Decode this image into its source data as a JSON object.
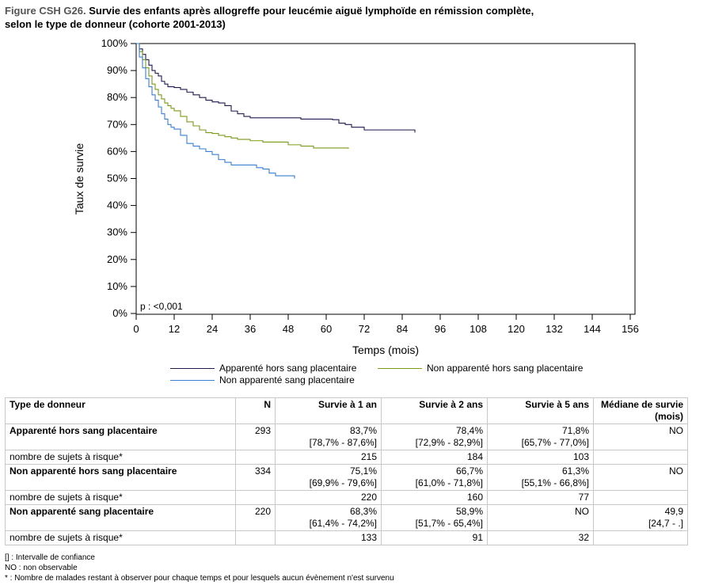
{
  "title": {
    "prefix": "Figure CSH G26.",
    "line1": "Survie des enfants après allogreffe pour leucémie aiguë lymphoïde en rémission complète,",
    "line2": "selon le type de donneur (cohorte 2001-2013)"
  },
  "chart_data": {
    "type": "line",
    "xlabel": "Temps (mois)",
    "ylabel": "Taux de survie",
    "xlim": [
      0,
      156
    ],
    "ylim": [
      0,
      100
    ],
    "x_ticks": [
      0,
      12,
      24,
      36,
      48,
      60,
      72,
      84,
      96,
      108,
      120,
      132,
      144,
      156
    ],
    "y_ticks": [
      "0%",
      "10%",
      "20%",
      "30%",
      "40%",
      "50%",
      "60%",
      "70%",
      "80%",
      "90%",
      "100%"
    ],
    "annotation": "p : <0,001",
    "grid": false,
    "legend_position": "bottom",
    "series": [
      {
        "name": "Apparenté hors sang placentaire",
        "color": "#1f1b4d",
        "x": [
          0,
          1,
          2,
          3,
          4,
          5,
          6,
          7,
          8,
          9,
          10,
          11,
          12,
          14,
          16,
          18,
          20,
          22,
          24,
          26,
          28,
          30,
          32,
          34,
          36,
          40,
          44,
          48,
          52,
          56,
          60,
          62,
          64,
          66,
          68,
          70,
          72,
          76,
          80,
          84,
          88
        ],
        "y": [
          100,
          98,
          96,
          94,
          92,
          90,
          89,
          88,
          86,
          85,
          84,
          84,
          83.7,
          83,
          82,
          81,
          80,
          79,
          78.4,
          78,
          77,
          75,
          74,
          73,
          72.5,
          72.5,
          72.5,
          72.5,
          72,
          72,
          72,
          71.8,
          70.5,
          70,
          69,
          69,
          68,
          68,
          68,
          68,
          67
        ]
      },
      {
        "name": "Non apparenté hors sang placentaire",
        "color": "#7a9a1a",
        "x": [
          0,
          1,
          2,
          3,
          4,
          5,
          6,
          7,
          8,
          9,
          10,
          11,
          12,
          14,
          16,
          18,
          20,
          22,
          24,
          26,
          28,
          30,
          32,
          36,
          40,
          44,
          48,
          52,
          56,
          60,
          64,
          67
        ],
        "y": [
          100,
          97,
          94,
          91,
          88,
          85,
          83,
          81,
          79.5,
          78,
          77,
          76,
          75.1,
          73,
          71,
          69.5,
          68,
          67,
          66.7,
          66,
          65.5,
          65,
          64.5,
          64,
          63.5,
          63.5,
          62.5,
          62,
          61.3,
          61.3,
          61.3,
          61
        ]
      },
      {
        "name": "Non apparenté sang placentaire",
        "color": "#3a7fd0",
        "x": [
          0,
          1,
          2,
          3,
          4,
          5,
          6,
          7,
          8,
          9,
          10,
          11,
          12,
          14,
          16,
          18,
          20,
          22,
          24,
          26,
          28,
          30,
          32,
          34,
          36,
          38,
          40,
          42,
          44,
          46,
          48,
          50
        ],
        "y": [
          100,
          95,
          91,
          87,
          84,
          81,
          79,
          76.5,
          74,
          72,
          70,
          69,
          68.3,
          66,
          63,
          62,
          61,
          60,
          58.9,
          57,
          56,
          55,
          55,
          55,
          55,
          54,
          53.5,
          52,
          51,
          51,
          51,
          50
        ]
      }
    ]
  },
  "table": {
    "headers": [
      "Type de donneur",
      "N",
      "Survie à 1 an",
      "Survie à 2 ans",
      "Survie à 5 ans",
      "Médiane de survie (mois)"
    ],
    "groups": [
      {
        "label": "Apparenté hors sang placentaire",
        "n": "293",
        "s1": "83,7%",
        "ci1": "[78,7% - 87,6%]",
        "s2": "78,4%",
        "ci2": "[72,9% - 82,9%]",
        "s5": "71,8%",
        "ci5": "[65,7% - 77,0%]",
        "median": "NO",
        "median_ci": "",
        "risk_label": "nombre de sujets à risque*",
        "risk1": "215",
        "risk2": "184",
        "risk5": "103"
      },
      {
        "label": "Non apparenté hors sang placentaire",
        "n": "334",
        "s1": "75,1%",
        "ci1": "[69,9% - 79,6%]",
        "s2": "66,7%",
        "ci2": "[61,0% - 71,8%]",
        "s5": "61,3%",
        "ci5": "[55,1% - 66,8%]",
        "median": "NO",
        "median_ci": "",
        "risk_label": "nombre de sujets à risque*",
        "risk1": "220",
        "risk2": "160",
        "risk5": "77"
      },
      {
        "label": "Non apparenté sang placentaire",
        "n": "220",
        "s1": "68,3%",
        "ci1": "[61,4% - 74,2%]",
        "s2": "58,9%",
        "ci2": "[51,7% - 65,4%]",
        "s5": "NO",
        "ci5": "",
        "median": "49,9",
        "median_ci": "[24,7 - .]",
        "risk_label": "nombre de sujets à risque*",
        "risk1": "133",
        "risk2": "91",
        "risk5": "32"
      }
    ]
  },
  "notes": [
    "[] : Intervalle de confiance",
    "NO : non observable",
    "* : Nombre de malades restant à observer pour chaque temps et pour lesquels aucun évènement n'est survenu"
  ]
}
